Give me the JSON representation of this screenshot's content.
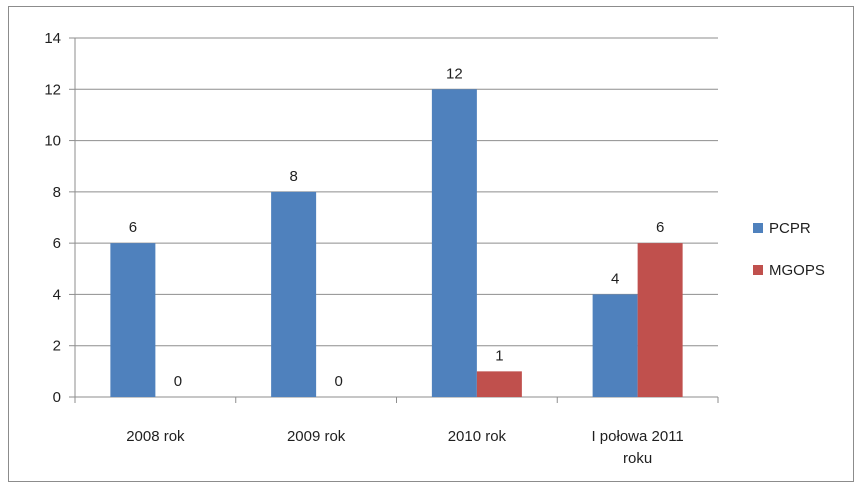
{
  "chart_data": {
    "type": "bar",
    "categories": [
      "2008 rok",
      "2009 rok",
      "2010 rok",
      "I połowa 2011 roku"
    ],
    "series": [
      {
        "name": "PCPR",
        "values": [
          6,
          8,
          12,
          4
        ],
        "color": "#4f81bd"
      },
      {
        "name": "MGOPS",
        "values": [
          0,
          0,
          1,
          6
        ],
        "color": "#c0504d"
      }
    ],
    "ylim": [
      0,
      14
    ],
    "yticks": [
      0,
      2,
      4,
      6,
      8,
      10,
      12,
      14
    ],
    "grid": true,
    "legend_position": "right",
    "data_labels": true
  }
}
